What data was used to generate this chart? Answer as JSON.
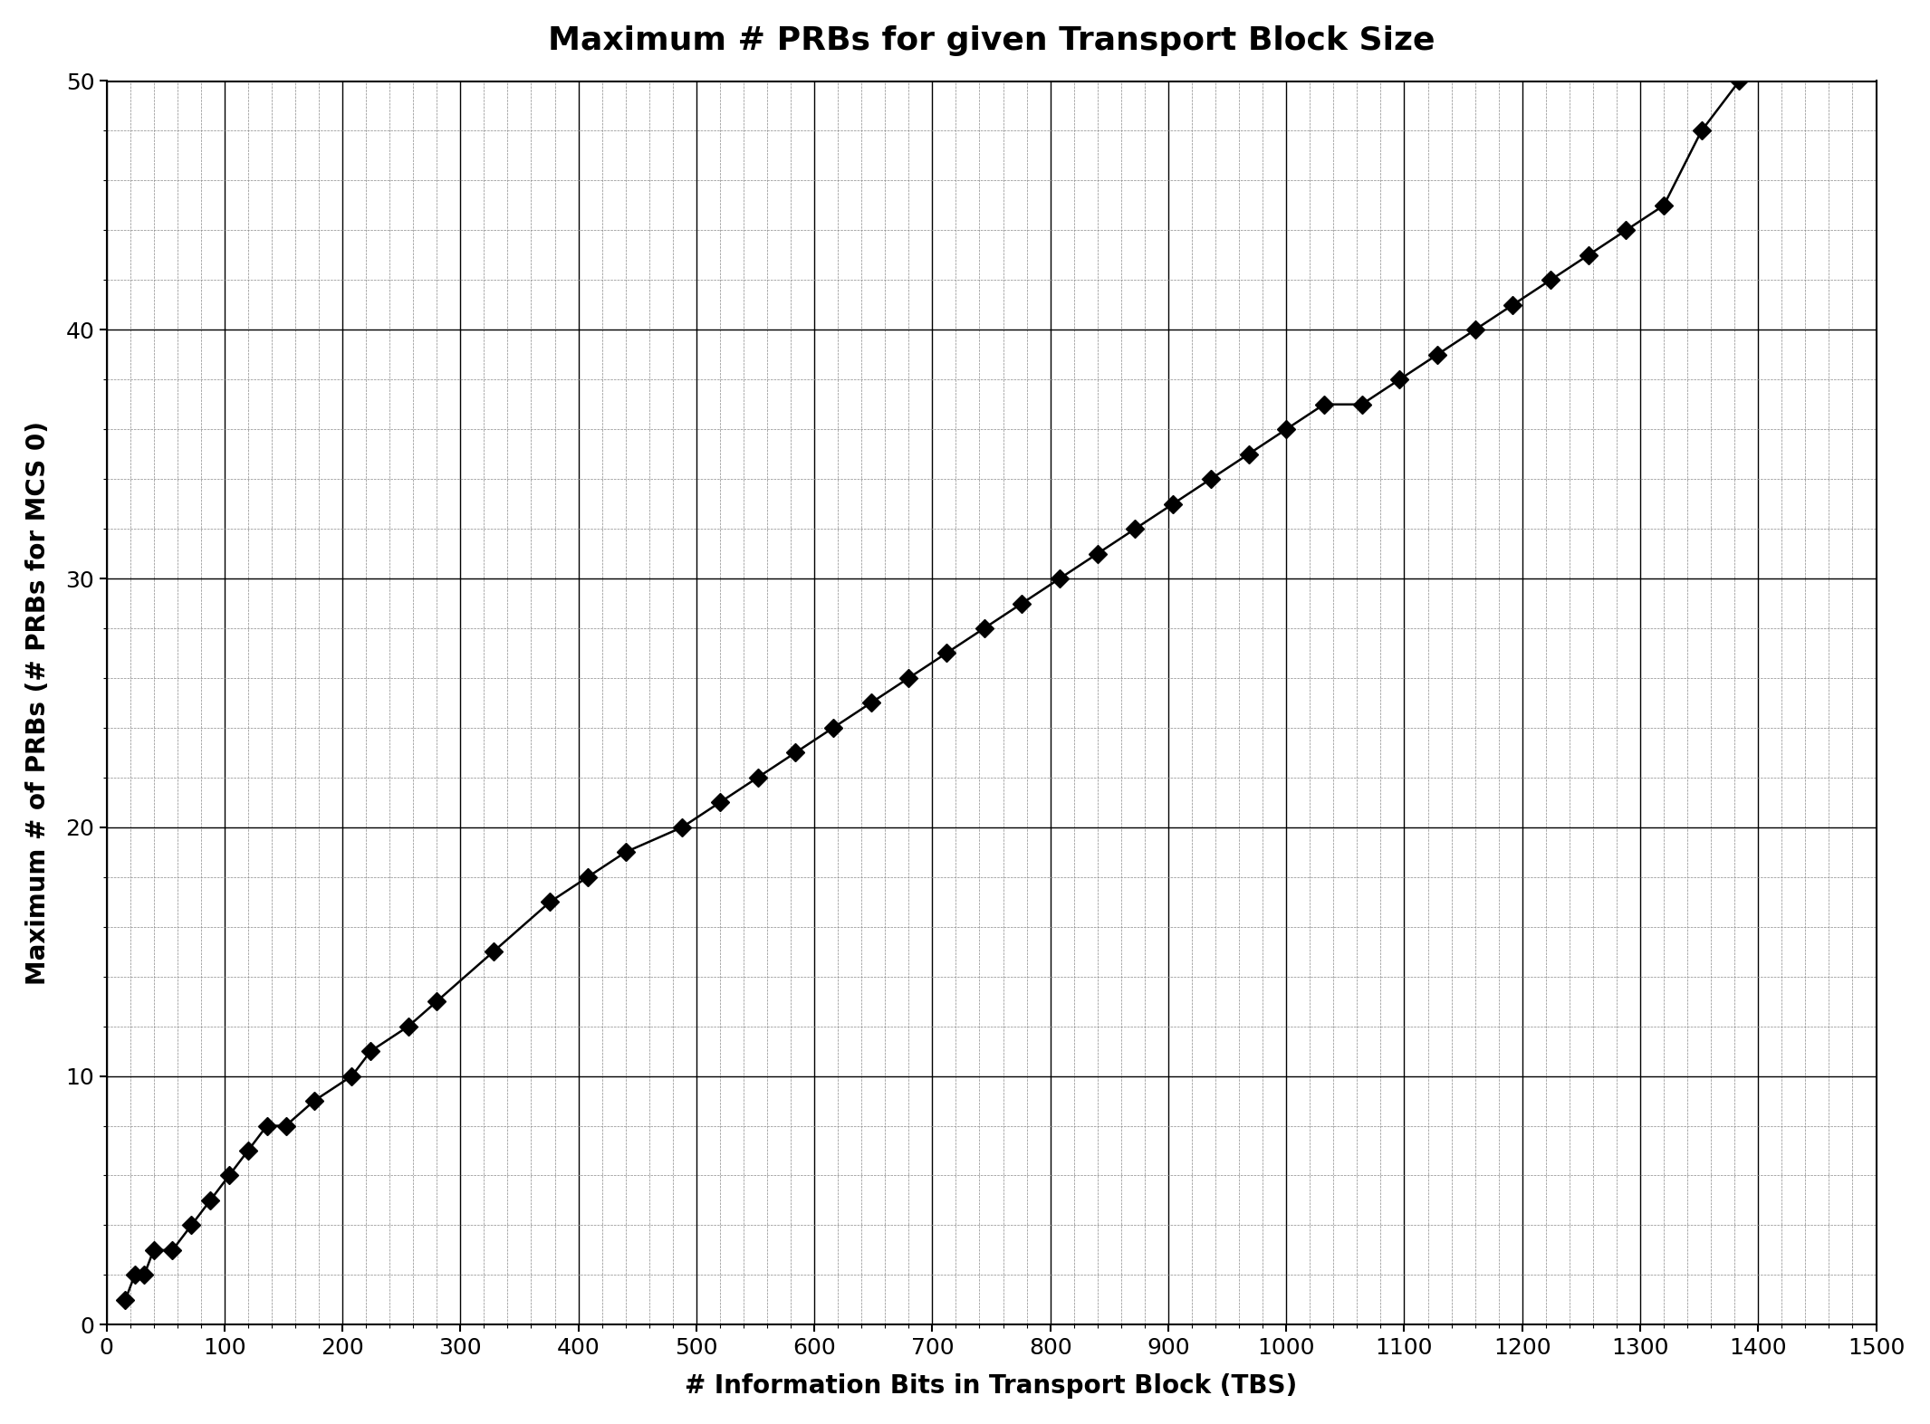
{
  "title": "Maximum # PRBs for given Transport Block Size",
  "xlabel": "# Information Bits in Transport Block (TBS)",
  "ylabel": "Maximum # of PRBs (# PRBs for MCS 0)",
  "xlim": [
    0,
    1500
  ],
  "ylim": [
    0,
    50
  ],
  "xticks": [
    0,
    100,
    200,
    300,
    400,
    500,
    600,
    700,
    800,
    900,
    1000,
    1100,
    1200,
    1300,
    1400,
    1500
  ],
  "yticks": [
    0,
    10,
    20,
    30,
    40,
    50
  ],
  "line_color": "#000000",
  "marker_color": "#000000",
  "background_color": "#ffffff",
  "x_data": [
    16,
    24,
    32,
    40,
    56,
    72,
    88,
    104,
    120,
    136,
    152,
    176,
    208,
    224,
    256,
    280,
    328,
    376,
    408,
    440,
    488,
    520,
    552,
    584,
    616,
    648,
    680,
    712,
    744,
    776,
    808,
    840,
    872,
    904,
    936,
    968,
    1000,
    1032,
    1064,
    1096,
    1128,
    1160,
    1192,
    1224,
    1256,
    1288,
    1320,
    1352,
    1384
  ],
  "y_data": [
    1,
    2,
    2,
    3,
    3,
    4,
    5,
    6,
    7,
    8,
    8,
    9,
    10,
    11,
    12,
    13,
    15,
    17,
    18,
    19,
    20,
    21,
    22,
    23,
    24,
    25,
    26,
    27,
    28,
    29,
    30,
    31,
    32,
    33,
    34,
    35,
    36,
    37,
    37,
    38,
    39,
    40,
    41,
    42,
    43,
    44,
    45,
    48,
    50
  ],
  "title_fontsize": 26,
  "axis_label_fontsize": 20,
  "tick_fontsize": 18,
  "minor_x_spacing": 20,
  "minor_y_spacing": 2,
  "major_grid_color": "#000000",
  "major_grid_linewidth": 1.0,
  "minor_grid_color": "#888888",
  "minor_grid_linewidth": 0.5,
  "minor_grid_linestyle": "--"
}
